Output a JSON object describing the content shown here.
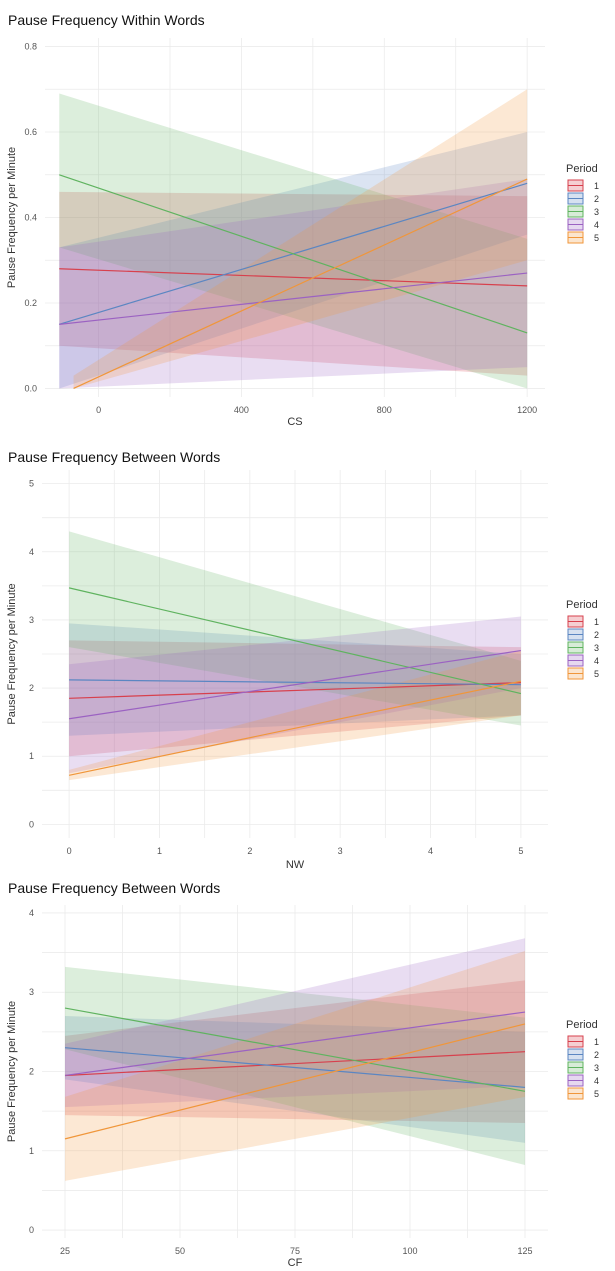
{
  "chart_data": [
    {
      "type": "line",
      "title": "Pause Frequency Within Words",
      "xlabel": "CS",
      "ylabel": "Pause Frequency per Minute",
      "xlim": [
        -150,
        1250
      ],
      "ylim": [
        -0.02,
        0.82
      ],
      "xticks": [
        0,
        400,
        800,
        1200
      ],
      "yticks": [
        0.0,
        0.2,
        0.4,
        0.6,
        0.8
      ],
      "ytick_labels": [
        "0.0",
        "0.2",
        "0.4",
        "0.6",
        "0.8"
      ],
      "grid": true,
      "legend_title": "Period",
      "legend_position": "right",
      "series": [
        {
          "name": "1",
          "color": "#d7404d",
          "x": [
            -110,
            1200
          ],
          "y": [
            0.28,
            0.24
          ],
          "ci_low": [
            0.1,
            0.03
          ],
          "ci_high": [
            0.46,
            0.45
          ]
        },
        {
          "name": "2",
          "color": "#5b86c2",
          "x": [
            -110,
            1200
          ],
          "y": [
            0.15,
            0.48
          ],
          "ci_low": [
            0.0,
            0.36
          ],
          "ci_high": [
            0.33,
            0.6
          ]
        },
        {
          "name": "3",
          "color": "#5fb35f",
          "x": [
            -110,
            1200
          ],
          "y": [
            0.5,
            0.13
          ],
          "ci_low": [
            0.33,
            0.0
          ],
          "ci_high": [
            0.69,
            0.35
          ]
        },
        {
          "name": "4",
          "color": "#9b62c2",
          "x": [
            -110,
            1200
          ],
          "y": [
            0.15,
            0.27
          ],
          "ci_low": [
            0.0,
            0.05
          ],
          "ci_high": [
            0.33,
            0.49
          ]
        },
        {
          "name": "5",
          "color": "#f0963a",
          "x": [
            -70,
            1200
          ],
          "y": [
            0.0,
            0.49
          ],
          "ci_low": [
            0.0,
            0.3
          ],
          "ci_high": [
            0.03,
            0.7
          ]
        }
      ]
    },
    {
      "type": "line",
      "title": "Pause Frequency Between Words",
      "xlabel": "NW",
      "ylabel": "Pause Frequency per Minute",
      "xlim": [
        -0.3,
        5.3
      ],
      "ylim": [
        -0.2,
        5.2
      ],
      "xticks": [
        0,
        1,
        2,
        3,
        4,
        5
      ],
      "yticks": [
        0,
        1,
        2,
        3,
        4,
        5
      ],
      "ytick_labels": [
        "0",
        "1",
        "2",
        "3",
        "4",
        "5"
      ],
      "grid": true,
      "legend_title": "Period",
      "legend_position": "right",
      "series": [
        {
          "name": "1",
          "color": "#d7404d",
          "x": [
            0,
            5
          ],
          "y": [
            1.85,
            2.08
          ],
          "ci_low": [
            1.0,
            1.6
          ],
          "ci_high": [
            2.7,
            2.6
          ]
        },
        {
          "name": "2",
          "color": "#5b86c2",
          "x": [
            0,
            5
          ],
          "y": [
            2.12,
            2.05
          ],
          "ci_low": [
            1.3,
            1.6
          ],
          "ci_high": [
            2.95,
            2.5
          ]
        },
        {
          "name": "3",
          "color": "#5fb35f",
          "x": [
            0,
            5
          ],
          "y": [
            3.47,
            1.92
          ],
          "ci_low": [
            2.6,
            1.45
          ],
          "ci_high": [
            4.3,
            2.4
          ]
        },
        {
          "name": "4",
          "color": "#9b62c2",
          "x": [
            0,
            5
          ],
          "y": [
            1.55,
            2.55
          ],
          "ci_low": [
            0.75,
            2.0
          ],
          "ci_high": [
            2.35,
            3.05
          ]
        },
        {
          "name": "5",
          "color": "#f0963a",
          "x": [
            0,
            5
          ],
          "y": [
            0.72,
            2.1
          ],
          "ci_low": [
            0.65,
            1.6
          ],
          "ci_high": [
            0.8,
            2.55
          ]
        }
      ]
    },
    {
      "type": "line",
      "title": "Pause Frequency Between Words",
      "xlabel": "CF",
      "ylabel": "Pause Frequency per Minute",
      "xlim": [
        20,
        130
      ],
      "ylim": [
        -0.1,
        4.1
      ],
      "xticks": [
        25,
        50,
        75,
        100,
        125
      ],
      "yticks": [
        0,
        1,
        2,
        3,
        4
      ],
      "ytick_labels": [
        "0",
        "1",
        "2",
        "3",
        "4"
      ],
      "grid": true,
      "legend_title": "Period",
      "legend_position": "right",
      "series": [
        {
          "name": "1",
          "color": "#d7404d",
          "x": [
            25,
            125
          ],
          "y": [
            1.95,
            2.25
          ],
          "ci_low": [
            1.45,
            1.35
          ],
          "ci_high": [
            2.45,
            3.15
          ]
        },
        {
          "name": "2",
          "color": "#5b86c2",
          "x": [
            25,
            125
          ],
          "y": [
            2.3,
            1.8
          ],
          "ci_low": [
            1.9,
            1.1
          ],
          "ci_high": [
            2.7,
            2.5
          ]
        },
        {
          "name": "3",
          "color": "#5fb35f",
          "x": [
            25,
            125
          ],
          "y": [
            2.8,
            1.75
          ],
          "ci_low": [
            2.28,
            0.82
          ],
          "ci_high": [
            3.32,
            2.68
          ]
        },
        {
          "name": "4",
          "color": "#9b62c2",
          "x": [
            25,
            125
          ],
          "y": [
            1.95,
            2.75
          ],
          "ci_low": [
            1.55,
            1.82
          ],
          "ci_high": [
            2.35,
            3.68
          ]
        },
        {
          "name": "5",
          "color": "#f0963a",
          "x": [
            25,
            125
          ],
          "y": [
            1.15,
            2.6
          ],
          "ci_low": [
            0.62,
            1.68
          ],
          "ci_high": [
            1.68,
            3.52
          ]
        }
      ]
    }
  ]
}
